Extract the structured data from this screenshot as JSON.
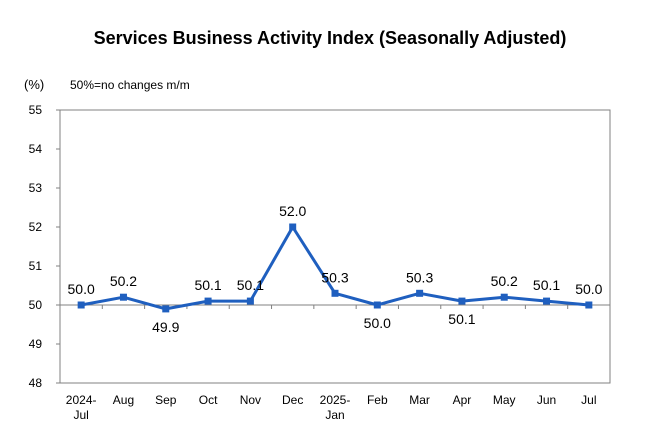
{
  "title": "Services Business Activity Index (Seasonally Adjusted)",
  "unit_label": "(%)",
  "note": "50%=no changes m/m",
  "colors": {
    "line": "#1f5fbf",
    "axis": "#808080",
    "frame": "#808080"
  },
  "chart_data": {
    "type": "line",
    "title": "Services Business Activity Index (Seasonally Adjusted)",
    "xlabel": "",
    "ylabel": "(%)",
    "categories": [
      [
        "2024-",
        "Jul"
      ],
      [
        "Aug"
      ],
      [
        "Sep"
      ],
      [
        "Oct"
      ],
      [
        "Nov"
      ],
      [
        "Dec"
      ],
      [
        "2025-",
        "Jan"
      ],
      [
        "Feb"
      ],
      [
        "Mar"
      ],
      [
        "Apr"
      ],
      [
        "May"
      ],
      [
        "Jun"
      ],
      [
        "Jul"
      ]
    ],
    "series": [
      {
        "values": [
          50.0,
          50.2,
          49.9,
          50.1,
          50.1,
          52.0,
          50.3,
          50.0,
          50.3,
          50.1,
          50.2,
          50.1,
          50.0
        ]
      }
    ],
    "data_labels": [
      "50.0",
      "50.2",
      "49.9",
      "50.1",
      "50.1",
      "52.0",
      "50.3",
      "50.0",
      "50.3",
      "50.1",
      "50.2",
      "50.1",
      "50.0"
    ],
    "yticks": [
      48,
      49,
      50,
      51,
      52,
      53,
      54,
      55
    ],
    "ylim": [
      48,
      55
    ],
    "grid": false,
    "legend": "none"
  }
}
